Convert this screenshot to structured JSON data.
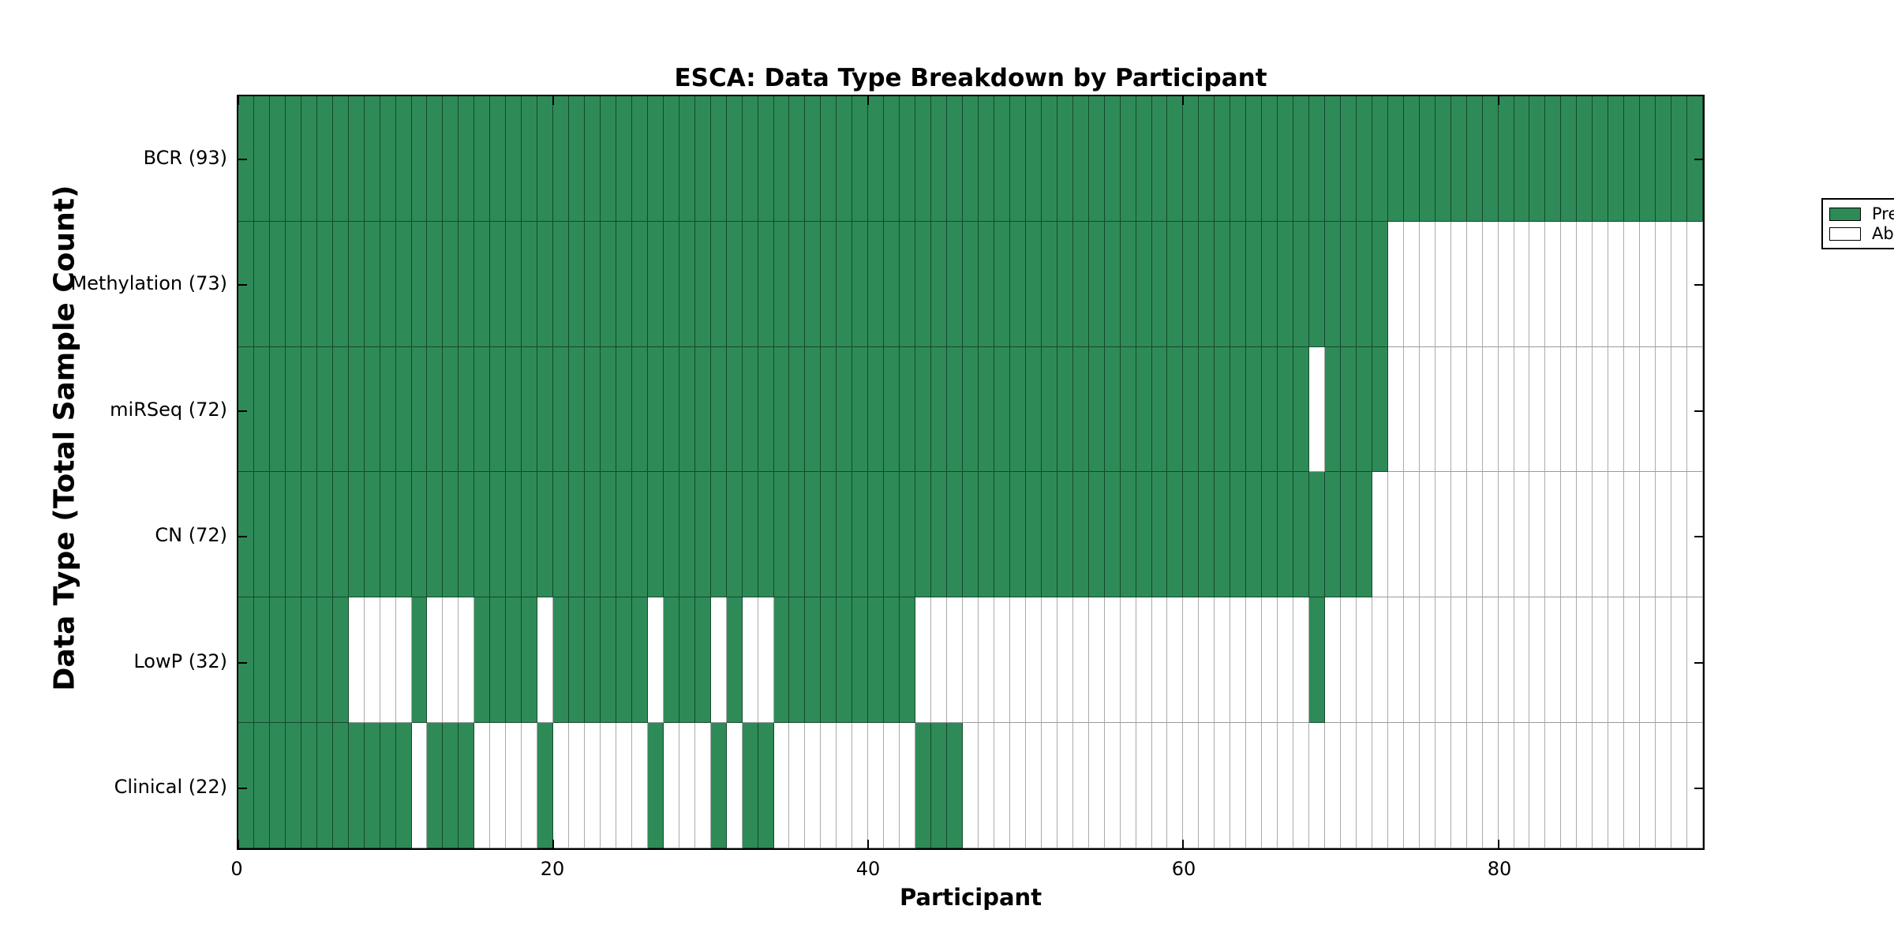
{
  "figure": {
    "background": "#ffffff"
  },
  "chart_data": {
    "type": "heatmap",
    "title": "ESCA: Data Type Breakdown by Participant",
    "xlabel": "Participant",
    "ylabel": "Data Type (Total Sample Count)",
    "n_participants": 93,
    "x_range": [
      0,
      93
    ],
    "x_ticks": [
      0,
      20,
      40,
      60,
      80
    ],
    "grid": false,
    "legend_position": "upper right",
    "colors": {
      "present": "#2e8b57",
      "absent": "#ffffff",
      "present_edge": "#15482c",
      "absent_edge": "#ababab",
      "frame": "#000000"
    },
    "legend": [
      {
        "label": "Present",
        "color": "#2e8b57"
      },
      {
        "label": "Absent",
        "color": "#ffffff"
      }
    ],
    "rows": [
      {
        "name": "BCR",
        "label": "BCR (93)",
        "total": 93,
        "present_ranges": [
          [
            0,
            92
          ]
        ]
      },
      {
        "name": "Methylation",
        "label": "Methylation (73)",
        "total": 73,
        "present_ranges": [
          [
            0,
            72
          ]
        ]
      },
      {
        "name": "miRSeq",
        "label": "miRSeq (72)",
        "total": 72,
        "present_ranges": [
          [
            0,
            67
          ],
          [
            69,
            72
          ]
        ]
      },
      {
        "name": "CN",
        "label": "CN (72)",
        "total": 72,
        "present_ranges": [
          [
            0,
            71
          ]
        ]
      },
      {
        "name": "LowP",
        "label": "LowP (32)",
        "total": 32,
        "present_ranges": [
          [
            0,
            6
          ],
          [
            11,
            11
          ],
          [
            15,
            18
          ],
          [
            20,
            25
          ],
          [
            27,
            29
          ],
          [
            31,
            31
          ],
          [
            34,
            42
          ],
          [
            68,
            68
          ]
        ]
      },
      {
        "name": "Clinical",
        "label": "Clinical (22)",
        "total": 22,
        "present_ranges": [
          [
            0,
            10
          ],
          [
            12,
            14
          ],
          [
            19,
            19
          ],
          [
            26,
            26
          ],
          [
            30,
            30
          ],
          [
            32,
            33
          ],
          [
            43,
            45
          ]
        ]
      }
    ]
  }
}
